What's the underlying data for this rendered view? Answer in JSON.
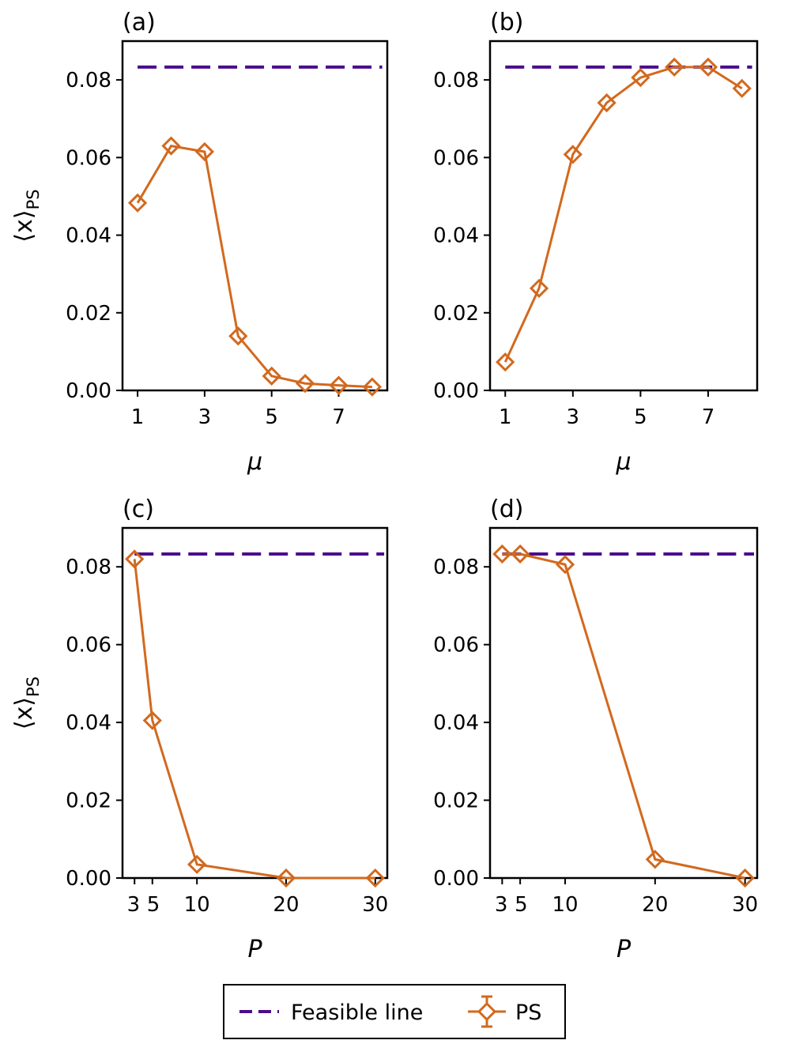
{
  "figure": {
    "ylabel_main": "⟨x⟩",
    "ylabel_sub": "PS",
    "colors": {
      "feasible": "#4b0c8c",
      "ps": "#d2691e",
      "axis": "#000000"
    },
    "legend": {
      "feasible_label": "Feasible line",
      "ps_label": "PS",
      "placement": "bottom-center"
    }
  },
  "chart_data": [
    {
      "id": "a",
      "panel_label": "(a)",
      "type": "line",
      "xlabel": "μ",
      "ylabel": "⟨x⟩_PS",
      "xlim": [
        0.55,
        8.45
      ],
      "ylim": [
        0.0,
        0.09
      ],
      "xticks": [
        1,
        3,
        5,
        7
      ],
      "xtick_labels": [
        "1",
        "3",
        "5",
        "7"
      ],
      "yticks": [
        0.0,
        0.02,
        0.04,
        0.06,
        0.08
      ],
      "ytick_labels": [
        "0.00",
        "0.02",
        "0.04",
        "0.06",
        "0.08"
      ],
      "series": [
        {
          "name": "Feasible line",
          "style": "dashed",
          "x": [
            1,
            8.3
          ],
          "values": [
            0.0833,
            0.0833
          ]
        },
        {
          "name": "PS",
          "style": "line-diamond",
          "x": [
            1,
            2,
            3,
            4,
            5,
            6,
            7,
            8
          ],
          "values": [
            0.0483,
            0.063,
            0.0615,
            0.014,
            0.0037,
            0.0018,
            0.0013,
            0.0009
          ]
        }
      ]
    },
    {
      "id": "b",
      "panel_label": "(b)",
      "type": "line",
      "xlabel": "μ",
      "ylabel": "",
      "xlim": [
        0.55,
        8.45
      ],
      "ylim": [
        0.0,
        0.09
      ],
      "xticks": [
        1,
        3,
        5,
        7
      ],
      "xtick_labels": [
        "1",
        "3",
        "5",
        "7"
      ],
      "yticks": [
        0.0,
        0.02,
        0.04,
        0.06,
        0.08
      ],
      "ytick_labels": [
        "0.00",
        "0.02",
        "0.04",
        "0.06",
        "0.08"
      ],
      "series": [
        {
          "name": "Feasible line",
          "style": "dashed",
          "x": [
            1,
            8.3
          ],
          "values": [
            0.0833,
            0.0833
          ]
        },
        {
          "name": "PS",
          "style": "line-diamond",
          "x": [
            1,
            2,
            3,
            4,
            5,
            6,
            7,
            8
          ],
          "values": [
            0.0073,
            0.0263,
            0.0608,
            0.0741,
            0.0806,
            0.0833,
            0.0833,
            0.0778
          ]
        }
      ]
    },
    {
      "id": "c",
      "panel_label": "(c)",
      "type": "line",
      "xlabel": "P",
      "ylabel": "⟨x⟩_PS",
      "xlim": [
        1.65,
        31.35
      ],
      "ylim": [
        0.0,
        0.09
      ],
      "xticks": [
        3,
        5,
        10,
        20,
        30
      ],
      "xtick_labels": [
        "3",
        "5",
        "10",
        "20",
        "30"
      ],
      "yticks": [
        0.0,
        0.02,
        0.04,
        0.06,
        0.08
      ],
      "ytick_labels": [
        "0.00",
        "0.02",
        "0.04",
        "0.06",
        "0.08"
      ],
      "series": [
        {
          "name": "Feasible line",
          "style": "dashed",
          "x": [
            3,
            31
          ],
          "values": [
            0.0833,
            0.0833
          ]
        },
        {
          "name": "PS",
          "style": "line-diamond",
          "x": [
            3,
            5,
            10,
            20,
            30
          ],
          "values": [
            0.082,
            0.0405,
            0.0035,
            0.0,
            0.0
          ]
        }
      ]
    },
    {
      "id": "d",
      "panel_label": "(d)",
      "type": "line",
      "xlabel": "P",
      "ylabel": "",
      "xlim": [
        1.65,
        31.35
      ],
      "ylim": [
        0.0,
        0.09
      ],
      "xticks": [
        3,
        5,
        10,
        20,
        30
      ],
      "xtick_labels": [
        "3",
        "5",
        "10",
        "20",
        "30"
      ],
      "yticks": [
        0.0,
        0.02,
        0.04,
        0.06,
        0.08
      ],
      "ytick_labels": [
        "0.00",
        "0.02",
        "0.04",
        "0.06",
        "0.08"
      ],
      "series": [
        {
          "name": "Feasible line",
          "style": "dashed",
          "x": [
            3,
            31
          ],
          "values": [
            0.0833,
            0.0833
          ]
        },
        {
          "name": "PS",
          "style": "line-diamond",
          "x": [
            3,
            5,
            10,
            20,
            30
          ],
          "values": [
            0.0833,
            0.0833,
            0.0806,
            0.0048,
            0.0
          ]
        }
      ]
    }
  ]
}
